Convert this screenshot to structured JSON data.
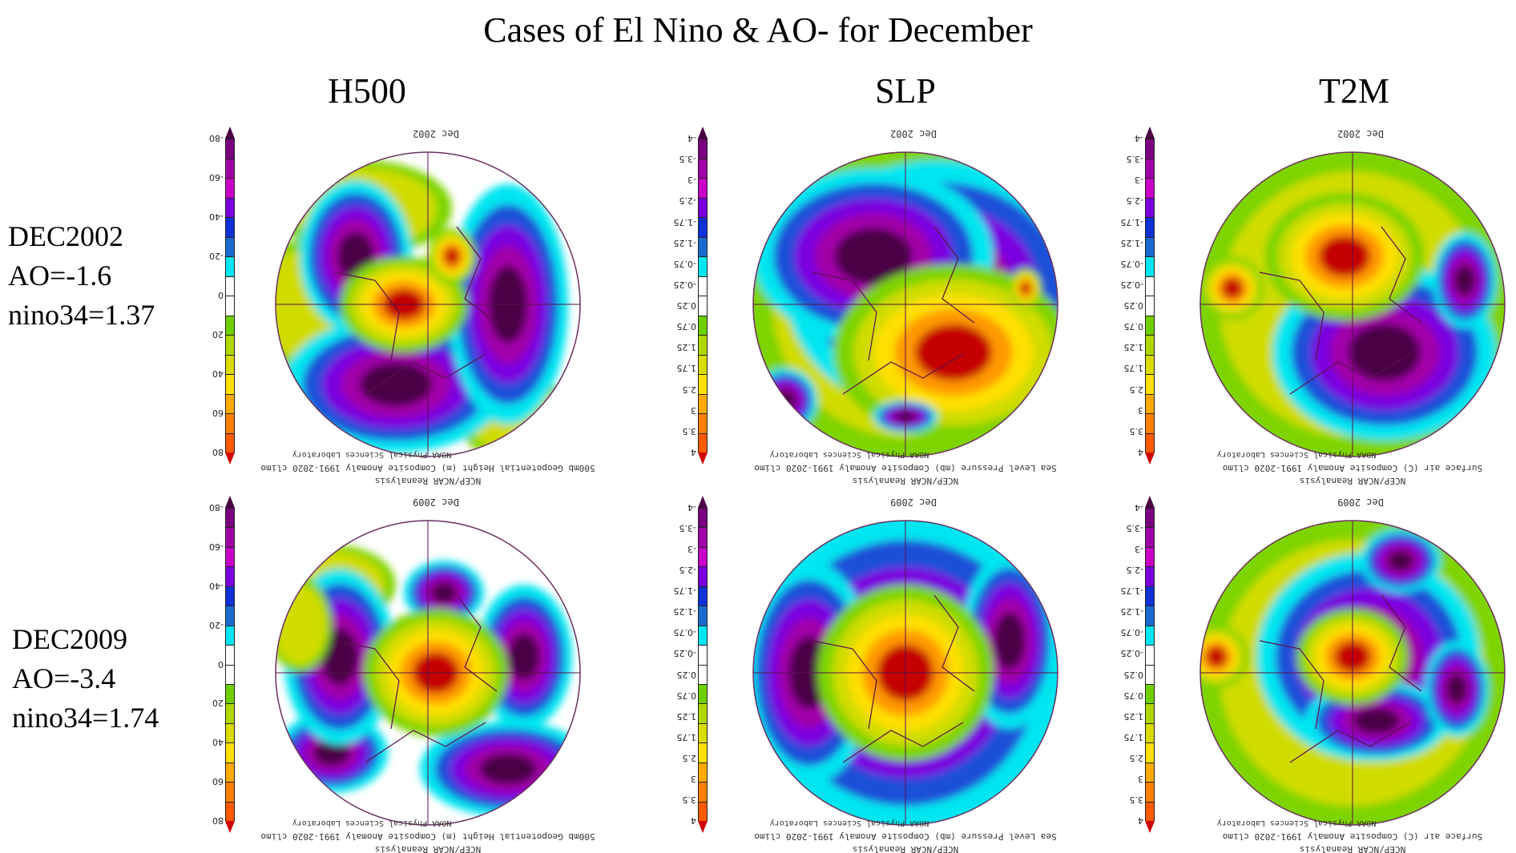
{
  "title": "Cases of El Nino & AO-  for December",
  "columns": [
    {
      "header": "H500",
      "caption": "500mb Geopotential Height (m) Composite Anomaly 1991-2020 climo",
      "colorbar_labels": [
        "-80",
        "-60",
        "-40",
        "-20",
        "0",
        "20",
        "40",
        "60",
        "80"
      ]
    },
    {
      "header": "SLP",
      "caption": "Sea Level Pressure (mb) Composite Anomaly 1991-2020 climo",
      "colorbar_labels": [
        "-4",
        "-3.5",
        "-3",
        "-2.5",
        "-1.75",
        "-1.25",
        "-0.75",
        "-0.25",
        "0.25",
        "0.75",
        "1.25",
        "1.75",
        "2.5",
        "3",
        "3.5",
        "4"
      ]
    },
    {
      "header": "T2M",
      "caption": "Surface air (C) Composite Anomaly 1991-2020 climo",
      "colorbar_labels": [
        "-4",
        "-3.5",
        "-3",
        "-2.5",
        "-1.75",
        "-1.25",
        "-0.75",
        "-0.25",
        "0.25",
        "0.75",
        "1.25",
        "1.75",
        "2.5",
        "3",
        "3.5",
        "4"
      ]
    }
  ],
  "rows": [
    {
      "case": "DEC2002",
      "ao": "AO=-1.6",
      "nino34": "nino34=1.37",
      "date": "Dec 2002"
    },
    {
      "case": "DEC2009",
      "ao": "AO=-3.4",
      "nino34": "nino34=1.74",
      "date": "Dec 2009"
    }
  ],
  "credit": "NOAA Physical Sciences Laboratory",
  "source": "NCEP/NCAR Reanalysis",
  "colorbar_colors": [
    "#4a0045",
    "#7a0080",
    "#a000a8",
    "#c800c8",
    "#7a00e0",
    "#1030d8",
    "#1a6ad0",
    "#00e6f0",
    "#ffffff",
    "#ffffff",
    "#6fd000",
    "#b0d800",
    "#d8dc00",
    "#ffe000",
    "#ffaa00",
    "#ff8000",
    "#ff5a00",
    "#d00000"
  ]
}
